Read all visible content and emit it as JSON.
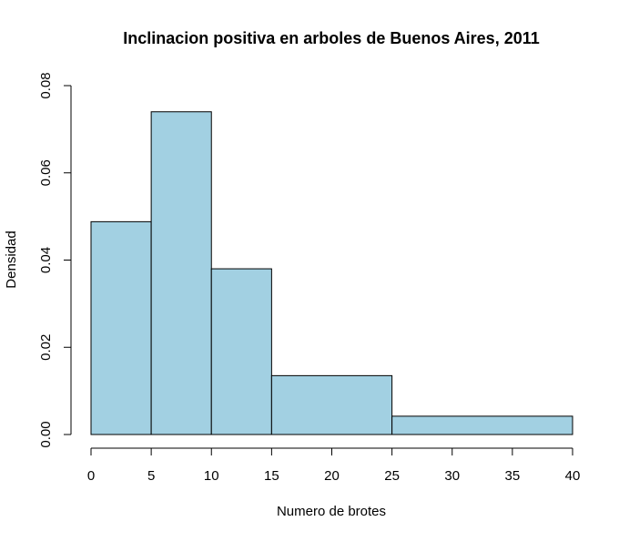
{
  "chart_data": {
    "type": "histogram",
    "title": "Inclinacion positiva en arboles de Buenos Aires, 2011",
    "xlabel": "Numero de brotes",
    "ylabel": "Densidad",
    "bins": [
      {
        "start": 0,
        "end": 5,
        "density": 0.0488
      },
      {
        "start": 5,
        "end": 10,
        "density": 0.074
      },
      {
        "start": 10,
        "end": 15,
        "density": 0.038
      },
      {
        "start": 15,
        "end": 25,
        "density": 0.0135
      },
      {
        "start": 25,
        "end": 40,
        "density": 0.0042
      }
    ],
    "x_ticks": [
      0,
      5,
      10,
      15,
      20,
      25,
      30,
      35,
      40
    ],
    "y_ticks": [
      "0.00",
      "0.02",
      "0.04",
      "0.06",
      "0.08"
    ],
    "xlim": [
      0,
      40
    ],
    "ylim": [
      0,
      0.08
    ],
    "grid": false,
    "legend": "none",
    "colors": {
      "bar_fill": "#A2D0E2",
      "bar_stroke": "#000000",
      "axis": "#000000"
    }
  }
}
